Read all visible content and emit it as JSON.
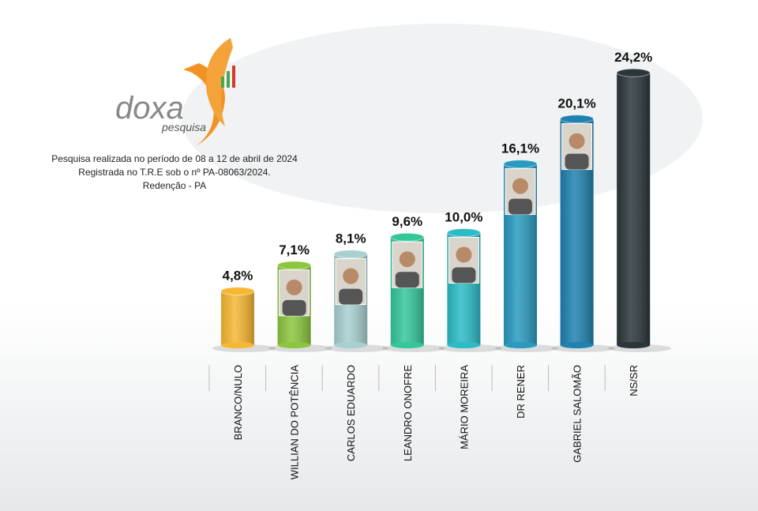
{
  "logo": {
    "brand": "doxa",
    "sub": "pesquisa"
  },
  "chart_data": {
    "type": "bar",
    "notes": [
      "Pesquisa realizada no período de  08 a 12 de abril de 2024",
      "Registrada no T.R.E sob o nº PA-08063/2024.",
      "Redenção - PA"
    ],
    "categories": [
      "BRANCO/NULO",
      "WILLIAN DO POTÊNCIA",
      "CARLOS EDUARDO",
      "LEANDRO ONOFRE",
      "MÁRIO MOREIRA",
      "DR RENER",
      "GABRIEL SALOMÃO",
      "NS/SR"
    ],
    "values": [
      4.8,
      7.1,
      8.1,
      9.6,
      10.0,
      16.1,
      20.1,
      24.2
    ],
    "value_labels": [
      "4,8%",
      "7,1%",
      "8,1%",
      "9,6%",
      "10,0%",
      "16,1%",
      "20,1%",
      "24,2%"
    ],
    "colors": [
      "#f7b733",
      "#8cc63f",
      "#a9d0d0",
      "#35c79a",
      "#2cbcc6",
      "#2a9ac0",
      "#1f82b0",
      "#2b363c"
    ]
  }
}
